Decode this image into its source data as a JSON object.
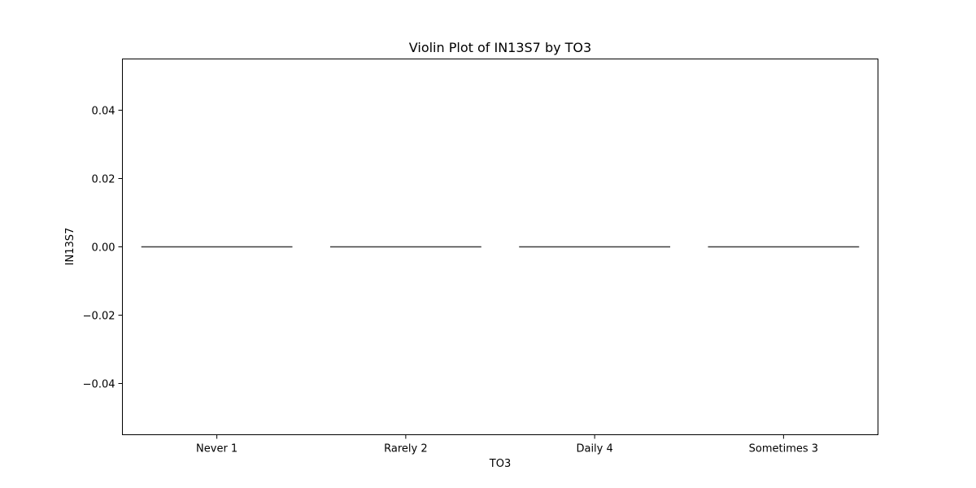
{
  "chart_data": {
    "type": "violin",
    "title": "Violin Plot of IN13S7 by TO3",
    "xlabel": "TO3",
    "ylabel": "IN13S7",
    "categories": [
      "Never 1",
      "Rarely 2",
      "Daily 4",
      "Sometimes 3"
    ],
    "values": [
      0.0,
      0.0,
      0.0,
      0.0
    ],
    "ylim": [
      -0.055,
      0.055
    ],
    "yticks": [
      0.04,
      0.02,
      0.0,
      -0.02,
      -0.04
    ],
    "ytick_labels": [
      "0.04",
      "0.02",
      "0.00",
      "−0.02",
      "−0.04"
    ],
    "grid": false,
    "line_color": "#3f3f3f"
  }
}
